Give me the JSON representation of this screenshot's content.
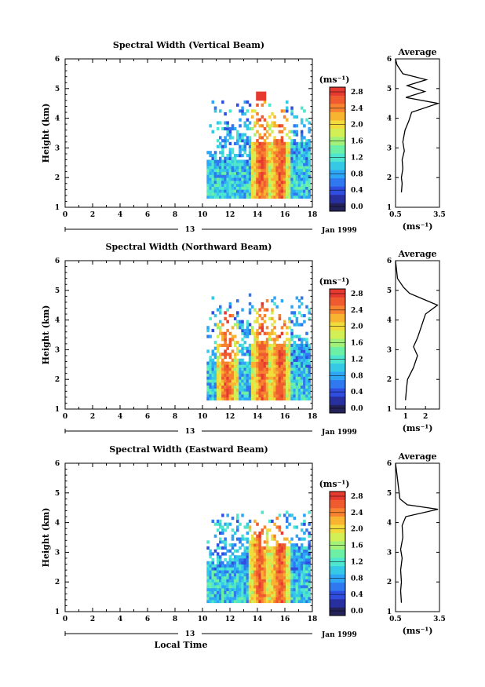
{
  "chart_data": [
    {
      "type": "heatmap",
      "title": "Spectral Width (Vertical Beam)",
      "ylabel": "Height (km)",
      "xlim": [
        0,
        18
      ],
      "ylim": [
        1,
        6
      ],
      "x_ticks": [
        "0",
        "2",
        "4",
        "6",
        "8",
        "10",
        "12",
        "14",
        "16",
        "18"
      ],
      "y_ticks": [
        "1",
        "2",
        "3",
        "4",
        "5",
        "6"
      ],
      "date_marker": "13",
      "date_label": "Jan 1999",
      "colorbar": {
        "unit": "(ms⁻¹)",
        "min": 0,
        "max": 2.8,
        "ticks": [
          "0.0",
          "0.4",
          "0.8",
          "1.2",
          "1.6",
          "2.0",
          "2.4",
          "2.8"
        ]
      },
      "data_coverage": {
        "x_start": 10.3,
        "x_end": 17.7,
        "y_start": 1.3,
        "y_end": 4.6
      },
      "high_width_columns": [
        {
          "x": 14.2,
          "y_top": 4.8
        },
        {
          "x": 15.6,
          "y_top": 4.4
        }
      ],
      "average_profile": {
        "title": "Average",
        "xlabel": "(ms⁻¹)",
        "xlim": [
          0.5,
          3.5
        ],
        "x_ticks": [
          "0.5",
          "3.5"
        ],
        "y_ticks": [
          "1",
          "2",
          "3",
          "4",
          "5",
          "6"
        ],
        "points": [
          [
            0.9,
            1.5
          ],
          [
            0.95,
            1.8
          ],
          [
            0.9,
            2.0
          ],
          [
            1.0,
            2.3
          ],
          [
            0.95,
            2.6
          ],
          [
            1.1,
            2.9
          ],
          [
            1.0,
            3.2
          ],
          [
            1.15,
            3.6
          ],
          [
            1.4,
            3.9
          ],
          [
            1.6,
            4.2
          ],
          [
            3.4,
            4.5
          ],
          [
            1.2,
            4.7
          ],
          [
            2.5,
            4.9
          ],
          [
            1.3,
            5.1
          ],
          [
            2.6,
            5.3
          ],
          [
            1.0,
            5.5
          ],
          [
            0.6,
            5.8
          ],
          [
            0.5,
            6.0
          ]
        ]
      }
    },
    {
      "type": "heatmap",
      "title": "Spectral Width (Northward Beam)",
      "ylabel": "Height (km)",
      "xlim": [
        0,
        18
      ],
      "ylim": [
        1,
        6
      ],
      "x_ticks": [
        "0",
        "2",
        "4",
        "6",
        "8",
        "10",
        "12",
        "14",
        "16",
        "18"
      ],
      "y_ticks": [
        "1",
        "2",
        "3",
        "4",
        "5",
        "6"
      ],
      "date_marker": "13",
      "date_label": "Jan 1999",
      "colorbar": {
        "unit": "(ms⁻¹)",
        "min": 0,
        "max": 2.8,
        "ticks": [
          "0.0",
          "0.4",
          "0.8",
          "1.2",
          "1.6",
          "2.0",
          "2.4",
          "2.8"
        ]
      },
      "data_coverage": {
        "x_start": 10.3,
        "x_end": 17.7,
        "y_start": 1.3,
        "y_end": 4.8
      },
      "high_width_columns": [
        {
          "x": 11.7,
          "y_top": 4.3
        },
        {
          "x": 14.3,
          "y_top": 4.8
        },
        {
          "x": 15.6,
          "y_top": 4.4
        }
      ],
      "average_profile": {
        "title": "Average",
        "xlabel": "(ms⁻¹)",
        "xlim": [
          0.5,
          2.7
        ],
        "x_ticks": [
          "1",
          "2"
        ],
        "y_ticks": [
          "1",
          "2",
          "3",
          "4",
          "5",
          "6"
        ],
        "points": [
          [
            1.0,
            1.3
          ],
          [
            1.05,
            1.7
          ],
          [
            1.1,
            2.0
          ],
          [
            1.4,
            2.4
          ],
          [
            1.6,
            2.8
          ],
          [
            1.4,
            3.1
          ],
          [
            1.6,
            3.4
          ],
          [
            1.8,
            3.8
          ],
          [
            2.0,
            4.2
          ],
          [
            2.6,
            4.5
          ],
          [
            1.9,
            4.7
          ],
          [
            1.2,
            4.9
          ],
          [
            0.9,
            5.1
          ],
          [
            0.6,
            5.4
          ],
          [
            0.5,
            6.0
          ]
        ]
      }
    },
    {
      "type": "heatmap",
      "title": "Spectral Width (Eastward Beam)",
      "ylabel": "Height (km)",
      "xlabel": "Local Time",
      "xlim": [
        0,
        18
      ],
      "ylim": [
        1,
        6
      ],
      "x_ticks": [
        "0",
        "2",
        "4",
        "6",
        "8",
        "10",
        "12",
        "14",
        "16",
        "18"
      ],
      "y_ticks": [
        "1",
        "2",
        "3",
        "4",
        "5",
        "6"
      ],
      "date_marker": "13",
      "date_label": "Jan 1999",
      "colorbar": {
        "unit": "(ms⁻¹)",
        "min": 0,
        "max": 2.8,
        "ticks": [
          "0.0",
          "0.4",
          "0.8",
          "1.2",
          "1.6",
          "2.0",
          "2.4",
          "2.8"
        ]
      },
      "data_coverage": {
        "x_start": 10.3,
        "x_end": 17.7,
        "y_start": 1.3,
        "y_end": 4.4
      },
      "high_width_columns": [
        {
          "x": 14.1,
          "y_top": 4.3
        },
        {
          "x": 15.6,
          "y_top": 4.2
        }
      ],
      "average_profile": {
        "title": "Average",
        "xlabel": "(ms⁻¹)",
        "xlim": [
          0.5,
          3.5
        ],
        "x_ticks": [
          "0.5",
          "3.5"
        ],
        "y_ticks": [
          "1",
          "2",
          "3",
          "4",
          "5",
          "6"
        ],
        "points": [
          [
            0.9,
            1.3
          ],
          [
            0.85,
            1.7
          ],
          [
            0.9,
            2.0
          ],
          [
            0.85,
            2.4
          ],
          [
            0.95,
            2.8
          ],
          [
            0.85,
            3.1
          ],
          [
            1.0,
            3.5
          ],
          [
            0.95,
            3.9
          ],
          [
            1.2,
            4.2
          ],
          [
            3.4,
            4.45
          ],
          [
            1.3,
            4.6
          ],
          [
            0.8,
            4.8
          ],
          [
            0.7,
            5.2
          ],
          [
            0.6,
            5.6
          ],
          [
            0.5,
            6.0
          ]
        ]
      }
    }
  ],
  "palette": [
    "#23235a",
    "#2830a0",
    "#2f4ee0",
    "#2f78f0",
    "#2fa6f5",
    "#35c9e6",
    "#4ee6cf",
    "#6cf0a6",
    "#a2f27a",
    "#d3ef56",
    "#f2dc3d",
    "#f8b331",
    "#f78330",
    "#ef5b2f",
    "#e63a30"
  ]
}
